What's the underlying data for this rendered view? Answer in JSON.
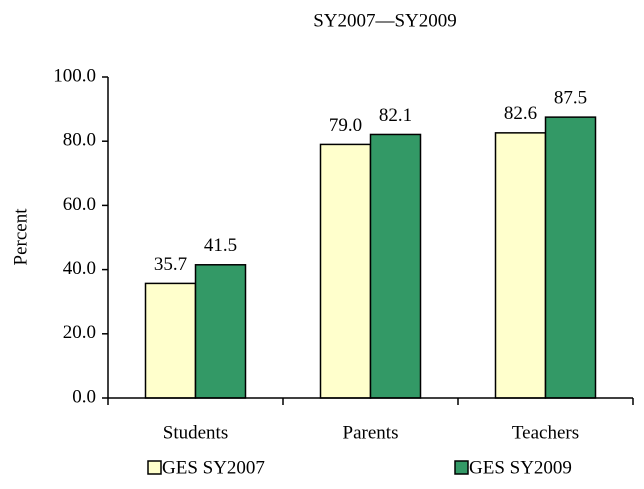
{
  "chart_data": {
    "type": "bar",
    "title": "SY2007—SY2009",
    "ylabel": "Percent",
    "categories": [
      "Students",
      "Parents",
      "Teachers"
    ],
    "series": [
      {
        "name": "GES SY2007",
        "color": "#ffffcc",
        "values": [
          35.7,
          79.0,
          82.6
        ],
        "value_labels": [
          "35.7",
          "79.0",
          "82.6"
        ]
      },
      {
        "name": "GES SY2009",
        "color": "#339966",
        "values": [
          41.5,
          82.1,
          87.5
        ],
        "value_labels": [
          "41.5",
          "82.1",
          "87.5"
        ]
      }
    ],
    "ylim": [
      0,
      100
    ],
    "yticks": [
      {
        "value": 0,
        "label": "0.0"
      },
      {
        "value": 20,
        "label": "20.0"
      },
      {
        "value": 40,
        "label": "40.0"
      },
      {
        "value": 60,
        "label": "60.0"
      },
      {
        "value": 80,
        "label": "80.0"
      },
      {
        "value": 100,
        "label": "100.0"
      }
    ],
    "grid": false,
    "legend": "bottom"
  }
}
